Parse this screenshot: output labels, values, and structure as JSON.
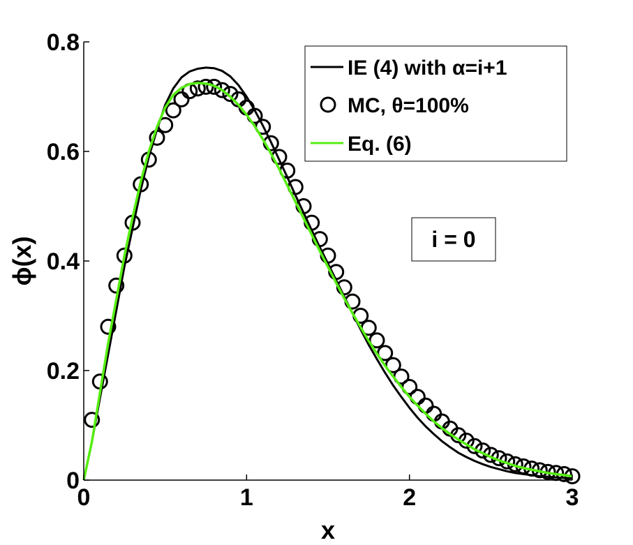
{
  "chart_data": {
    "type": "line",
    "xlabel": "x",
    "ylabel": "ϕ(x)",
    "xlim": [
      0,
      3
    ],
    "ylim": [
      0,
      0.8
    ],
    "xticks": [
      0,
      1,
      2,
      3
    ],
    "yticks": [
      0,
      0.2,
      0.4,
      0.6,
      0.8
    ],
    "xtick_labels": [
      "0",
      "1",
      "2",
      "3"
    ],
    "ytick_labels": [
      "0",
      "0.2",
      "0.4",
      "0.6",
      "0.8"
    ],
    "grid": false,
    "legend_position": "top-right",
    "annotation": "i = 0",
    "series": [
      {
        "name": "IE (4) with α=i+1",
        "style": "line",
        "color": "#000000",
        "x": [
          0,
          0.05,
          0.1,
          0.15,
          0.2,
          0.25,
          0.3,
          0.35,
          0.4,
          0.45,
          0.5,
          0.55,
          0.6,
          0.65,
          0.7,
          0.75,
          0.8,
          0.85,
          0.9,
          0.95,
          1.0,
          1.05,
          1.1,
          1.15,
          1.2,
          1.25,
          1.3,
          1.35,
          1.4,
          1.45,
          1.5,
          1.55,
          1.6,
          1.65,
          1.7,
          1.75,
          1.8,
          1.85,
          1.9,
          1.95,
          2.0,
          2.05,
          2.1,
          2.15,
          2.2,
          2.25,
          2.3,
          2.35,
          2.4,
          2.45,
          2.5,
          2.55,
          2.6,
          2.65,
          2.7,
          2.75,
          2.8,
          2.85,
          2.9,
          2.95,
          3.0
        ],
        "y": [
          0,
          0.07,
          0.15,
          0.23,
          0.31,
          0.39,
          0.46,
          0.53,
          0.59,
          0.64,
          0.685,
          0.715,
          0.735,
          0.746,
          0.751,
          0.753,
          0.752,
          0.747,
          0.737,
          0.721,
          0.7,
          0.675,
          0.647,
          0.617,
          0.585,
          0.553,
          0.52,
          0.488,
          0.456,
          0.425,
          0.395,
          0.365,
          0.335,
          0.305,
          0.275,
          0.247,
          0.221,
          0.196,
          0.173,
          0.152,
          0.132,
          0.114,
          0.098,
          0.084,
          0.071,
          0.06,
          0.05,
          0.042,
          0.035,
          0.029,
          0.024,
          0.02,
          0.016,
          0.013,
          0.011,
          0.009,
          0.007,
          0.006,
          0.005,
          0.004,
          0.003
        ]
      },
      {
        "name": "MC, θ=100%",
        "style": "marker",
        "marker": "circle",
        "color": "#000000",
        "x": [
          0.05,
          0.1,
          0.15,
          0.2,
          0.25,
          0.3,
          0.35,
          0.4,
          0.45,
          0.5,
          0.55,
          0.6,
          0.65,
          0.7,
          0.75,
          0.8,
          0.85,
          0.9,
          0.95,
          1.0,
          1.05,
          1.1,
          1.15,
          1.2,
          1.25,
          1.3,
          1.35,
          1.4,
          1.45,
          1.5,
          1.55,
          1.6,
          1.65,
          1.7,
          1.75,
          1.8,
          1.85,
          1.9,
          1.95,
          2.0,
          2.05,
          2.1,
          2.15,
          2.2,
          2.25,
          2.3,
          2.35,
          2.4,
          2.45,
          2.5,
          2.55,
          2.6,
          2.65,
          2.7,
          2.75,
          2.8,
          2.85,
          2.9,
          2.95,
          3.0
        ],
        "y": [
          0.11,
          0.18,
          0.28,
          0.355,
          0.41,
          0.47,
          0.54,
          0.585,
          0.625,
          0.648,
          0.675,
          0.695,
          0.71,
          0.715,
          0.718,
          0.718,
          0.712,
          0.705,
          0.695,
          0.68,
          0.665,
          0.645,
          0.615,
          0.59,
          0.565,
          0.535,
          0.5,
          0.47,
          0.44,
          0.41,
          0.38,
          0.352,
          0.326,
          0.3,
          0.278,
          0.255,
          0.232,
          0.21,
          0.189,
          0.17,
          0.152,
          0.136,
          0.121,
          0.107,
          0.094,
          0.082,
          0.072,
          0.062,
          0.054,
          0.046,
          0.04,
          0.034,
          0.029,
          0.025,
          0.021,
          0.018,
          0.015,
          0.013,
          0.011,
          0.007
        ]
      },
      {
        "name": "Eq. (6)",
        "style": "line",
        "color": "#55ee11",
        "x": [
          0,
          0.05,
          0.1,
          0.15,
          0.2,
          0.25,
          0.3,
          0.35,
          0.4,
          0.45,
          0.5,
          0.55,
          0.6,
          0.65,
          0.7,
          0.75,
          0.8,
          0.85,
          0.9,
          0.95,
          1.0,
          1.05,
          1.1,
          1.15,
          1.2,
          1.25,
          1.3,
          1.35,
          1.4,
          1.45,
          1.5,
          1.55,
          1.6,
          1.65,
          1.7,
          1.75,
          1.8,
          1.85,
          1.9,
          1.95,
          2.0,
          2.05,
          2.1,
          2.15,
          2.2,
          2.25,
          2.3,
          2.35,
          2.4,
          2.45,
          2.5,
          2.55,
          2.6,
          2.65,
          2.7,
          2.75,
          2.8,
          2.85,
          2.9,
          2.95,
          3.0
        ],
        "y": [
          0,
          0.07,
          0.16,
          0.25,
          0.33,
          0.41,
          0.48,
          0.545,
          0.6,
          0.645,
          0.68,
          0.703,
          0.716,
          0.723,
          0.725,
          0.724,
          0.72,
          0.712,
          0.7,
          0.685,
          0.667,
          0.646,
          0.622,
          0.596,
          0.568,
          0.538,
          0.508,
          0.478,
          0.448,
          0.418,
          0.389,
          0.36,
          0.332,
          0.305,
          0.279,
          0.254,
          0.231,
          0.209,
          0.189,
          0.17,
          0.152,
          0.136,
          0.121,
          0.107,
          0.095,
          0.084,
          0.074,
          0.065,
          0.056,
          0.049,
          0.042,
          0.036,
          0.031,
          0.026,
          0.022,
          0.019,
          0.016,
          0.013,
          0.011,
          0.009,
          0.007
        ]
      }
    ]
  }
}
